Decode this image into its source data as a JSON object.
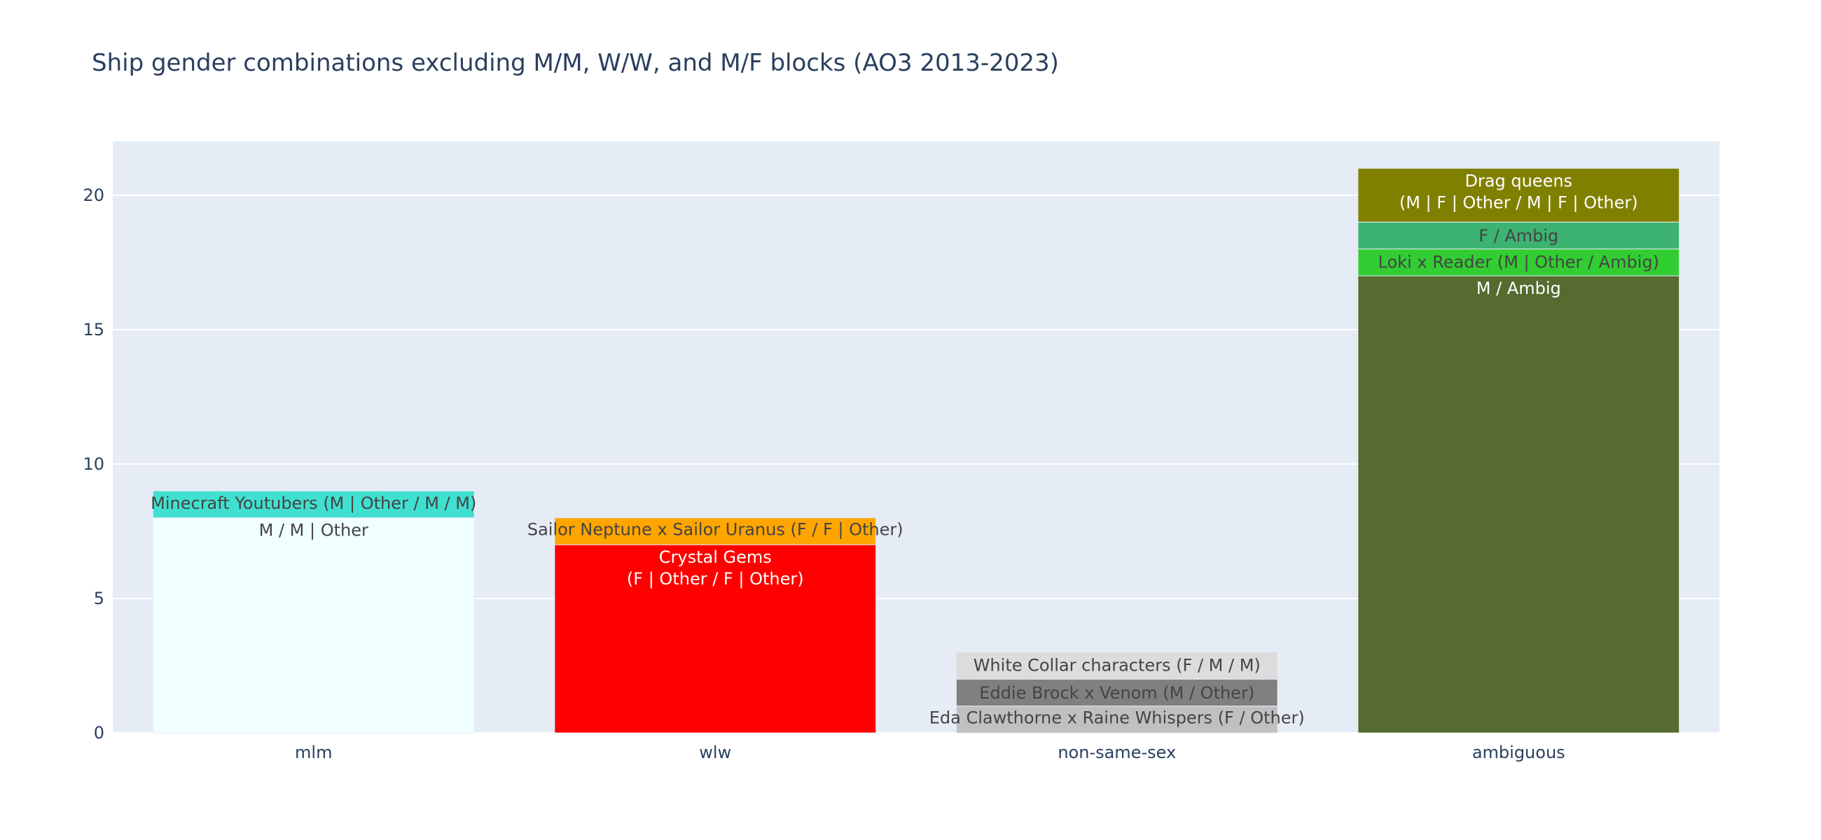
{
  "chart_data": {
    "type": "bar",
    "stacked": true,
    "title": "Ship gender combinations excluding M/M, W/W, and M/F blocks (AO3 2013-2023)",
    "xlabel": "",
    "ylabel": "",
    "ylim": [
      0,
      22
    ],
    "yticks": [
      0,
      5,
      10,
      15,
      20
    ],
    "grid": true,
    "legend": "none",
    "categories": [
      "mlm",
      "wlw",
      "non-same-sex",
      "ambiguous"
    ],
    "bars": [
      {
        "category": "mlm",
        "segments": [
          {
            "label": "M / M | Other",
            "value": 8,
            "color": "#f0ffff",
            "text_color": "#444444"
          },
          {
            "label": "Minecraft Youtubers (M | Other / M / M)",
            "value": 1,
            "color": "#40e0d0",
            "text_color": "#444444"
          }
        ]
      },
      {
        "category": "wlw",
        "segments": [
          {
            "label": "Crystal Gems\n(F | Other / F | Other)",
            "value": 7,
            "color": "#ff0000",
            "text_color": "#ffffff"
          },
          {
            "label": "Sailor Neptune x Sailor Uranus (F / F | Other)",
            "value": 1,
            "color": "#ffa500",
            "text_color": "#444444"
          }
        ]
      },
      {
        "category": "non-same-sex",
        "segments": [
          {
            "label": "Eda Clawthorne x Raine Whispers (F / Other)",
            "value": 1,
            "color": "#c0c0c0",
            "text_color": "#444444"
          },
          {
            "label": "Eddie Brock x Venom (M / Other)",
            "value": 1,
            "color": "#808080",
            "text_color": "#444444"
          },
          {
            "label": "White Collar characters (F / M / M)",
            "value": 1,
            "color": "#dcdcdc",
            "text_color": "#444444"
          }
        ]
      },
      {
        "category": "ambiguous",
        "segments": [
          {
            "label": "M / Ambig",
            "value": 17,
            "color": "#556b2f",
            "text_color": "#ffffff"
          },
          {
            "label": "Loki x Reader (M | Other / Ambig)",
            "value": 1,
            "color": "#32cd32",
            "text_color": "#444444"
          },
          {
            "label": "F / Ambig",
            "value": 1,
            "color": "#3cb371",
            "text_color": "#444444"
          },
          {
            "label": "Drag queens\n(M | F | Other / M | F | Other)",
            "value": 2,
            "color": "#808000",
            "text_color": "#ffffff"
          }
        ]
      }
    ]
  }
}
